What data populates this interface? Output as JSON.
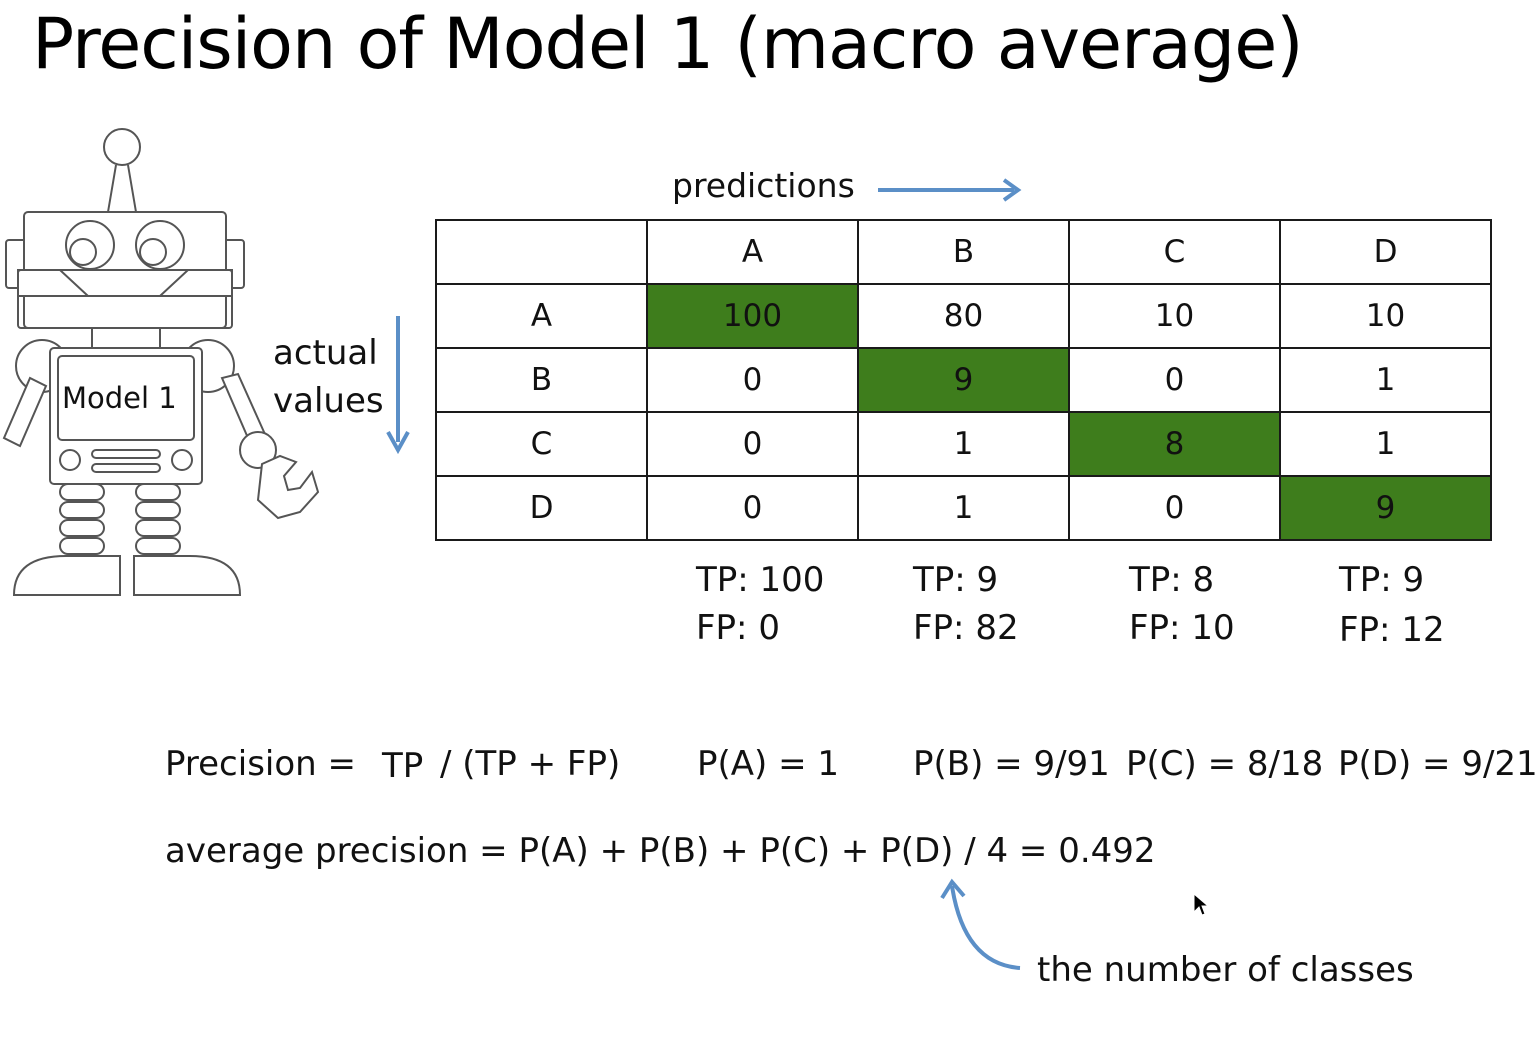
{
  "title": "Precision of Model 1 (macro average)",
  "robot_label": "Model 1",
  "predictions_label": "predictions",
  "actual_label_line1": "actual",
  "actual_label_line2": "values",
  "highlight_color": "#3e7d1c",
  "arrow_color": "#5b8fc7",
  "matrix": {
    "column_headers": [
      "A",
      "B",
      "C",
      "D"
    ],
    "rows": [
      {
        "label": "A",
        "values": [
          "100",
          "80",
          "10",
          "10"
        ]
      },
      {
        "label": "B",
        "values": [
          "0",
          "9",
          "0",
          "1"
        ]
      },
      {
        "label": "C",
        "values": [
          "0",
          "1",
          "8",
          "1"
        ]
      },
      {
        "label": "D",
        "values": [
          "0",
          "1",
          "0",
          "9"
        ]
      }
    ]
  },
  "stats": [
    {
      "tp": "TP: 100",
      "fp": "FP: 0"
    },
    {
      "tp": "TP: 9",
      "fp": "FP: 82"
    },
    {
      "tp": "TP: 8",
      "fp": "FP: 10"
    },
    {
      "tp": "TP: 9",
      "fp": "FP: 12"
    }
  ],
  "formula": {
    "precision_label": "Precision =",
    "tp": "TP",
    "rest": "/ (TP + FP)",
    "pa": "P(A) = 1",
    "pb": "P(B) = 9/91",
    "pc": "P(C) = 8/18",
    "pd": "P(D) = 9/21",
    "average": "average precision = P(A) + P(B) + P(C) + P(D) / 4 = 0.492"
  },
  "annotation": "the number of classes"
}
